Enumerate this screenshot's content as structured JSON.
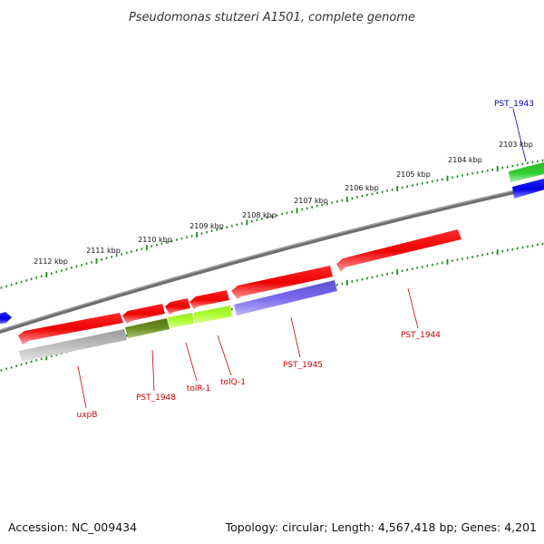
{
  "title": "Pseudomonas stutzeri A1501, complete genome",
  "footer": {
    "accession": "Accession: NC_009434",
    "summary": "Topology: circular; Length: 4,567,418 bp; Genes: 4,201"
  },
  "colors": {
    "backbone": "#7f7f7f",
    "tick": "#1a8a1a",
    "red_gene": "#ee0000",
    "blue_gene": "#1111ee",
    "green_gene": "#2ec82e",
    "grey_gene": "#bbbbbb",
    "olive_gene": "#6b8e23",
    "lime_gene": "#adff2f",
    "slate_gene": "#7b68ee",
    "label_red": "#cc0000",
    "label_blue": "#0000cc"
  },
  "scale_ticks": [
    "2103 kbp",
    "2104 kbp",
    "2105 kbp",
    "2106 kbp",
    "2107 kbp",
    "2108 kbp",
    "2109 kbp",
    "2110 kbp",
    "2111 kbp",
    "2112 kbp"
  ],
  "gene_labels": [
    {
      "id": "pst1943",
      "text": "PST_1943",
      "color": "blue"
    },
    {
      "id": "pst1944",
      "text": "PST_1944",
      "color": "red"
    },
    {
      "id": "pst1945",
      "text": "PST_1945",
      "color": "red"
    },
    {
      "id": "tolq",
      "text": "tolQ-1",
      "color": "red"
    },
    {
      "id": "tolr",
      "text": "tolR-1",
      "color": "red"
    },
    {
      "id": "pst1948",
      "text": "PST_1948",
      "color": "red"
    },
    {
      "id": "uxpb",
      "text": "uxpB",
      "color": "red"
    }
  ]
}
